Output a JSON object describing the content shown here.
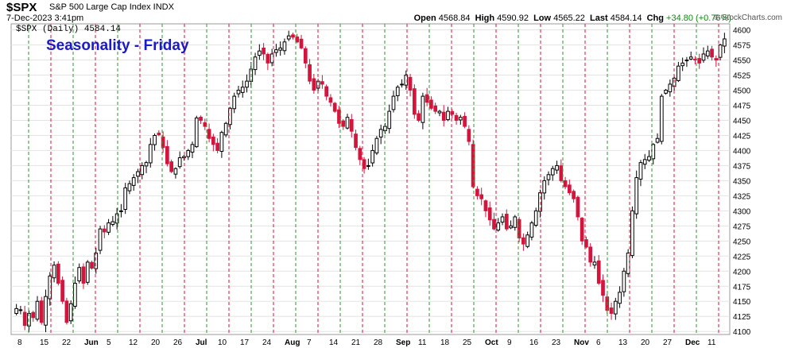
{
  "header": {
    "symbol": "$SPX",
    "description": "S&P 500 Large Cap Index INDX",
    "datetime": "7-Dec-2023 3:41pm",
    "open_label": "Open",
    "open": "4568.84",
    "high_label": "High",
    "high": "4590.92",
    "low_label": "Low",
    "low": "4565.22",
    "last_label": "Last",
    "last": "4584.14",
    "chg_label": "Chg",
    "chg": "+34.80 (+0.76%)",
    "brand": "© StockCharts.com"
  },
  "legend": "$SPX (Daily) 4584.14",
  "annotation": "Seasonality - Friday",
  "colors": {
    "up": "#000000",
    "down": "#d4143c",
    "friday_line": "#2a9a2a",
    "monday_line": "#d4143c"
  },
  "chart_data": {
    "type": "candlestick",
    "ylim": [
      4095,
      4610
    ],
    "y_ticks": [
      4100,
      4125,
      4150,
      4175,
      4200,
      4225,
      4250,
      4275,
      4300,
      4325,
      4350,
      4375,
      4400,
      4425,
      4450,
      4475,
      4500,
      4525,
      4550,
      4575,
      4600
    ],
    "x_labels": [
      "8",
      "15",
      "22",
      "Jun",
      "5",
      "12",
      "20",
      "26",
      "Jul",
      "10",
      "17",
      "24",
      "Aug",
      "7",
      "14",
      "21",
      "28",
      "Sep",
      "11",
      "18",
      "25",
      "Oct",
      "9",
      "16",
      "23",
      "Nov",
      "6",
      "13",
      "20",
      "27",
      "Dec",
      "11"
    ],
    "x_label_bold": [
      "Jun",
      "Jul",
      "Aug",
      "Sep",
      "Oct",
      "Nov",
      "Dec"
    ],
    "grid": true,
    "closes": [
      4138,
      4136,
      4110,
      4130,
      4123,
      4150,
      4115,
      4158,
      4192,
      4210,
      4180,
      4150,
      4115,
      4146,
      4180,
      4206,
      4180,
      4215,
      4205,
      4230,
      4270,
      4265,
      4280,
      4282,
      4295,
      4300,
      4338,
      4345,
      4355,
      4365,
      4375,
      4380,
      4410,
      4425,
      4426,
      4405,
      4378,
      4365,
      4370,
      4388,
      4390,
      4400,
      4410,
      4454,
      4450,
      4440,
      4420,
      4410,
      4400,
      4430,
      4445,
      4470,
      4490,
      4500,
      4505,
      4515,
      4535,
      4555,
      4565,
      4560,
      4545,
      4560,
      4567,
      4570,
      4580,
      4590,
      4588,
      4580,
      4570,
      4545,
      4515,
      4500,
      4515,
      4510,
      4490,
      4480,
      4465,
      4445,
      4440,
      4455,
      4432,
      4405,
      4385,
      4370,
      4375,
      4400,
      4420,
      4435,
      4440,
      4465,
      4490,
      4505,
      4510,
      4525,
      4500,
      4460,
      4450,
      4490,
      4480,
      4470,
      4465,
      4465,
      4450,
      4465,
      4460,
      4450,
      4455,
      4440,
      4415,
      4340,
      4325,
      4320,
      4300,
      4285,
      4270,
      4280,
      4290,
      4270,
      4275,
      4290,
      4255,
      4245,
      4260,
      4280,
      4300,
      4330,
      4350,
      4360,
      4370,
      4375,
      4350,
      4340,
      4330,
      4320,
      4290,
      4250,
      4240,
      4215,
      4215,
      4180,
      4160,
      4135,
      4130,
      4150,
      4165,
      4200,
      4230,
      4300,
      4355,
      4380,
      4385,
      4390,
      4410,
      4420,
      4490,
      4500,
      4510,
      4520,
      4540,
      4545,
      4550,
      4555,
      4550,
      4545,
      4560,
      4565,
      4555,
      4550,
      4575,
      4585
    ]
  }
}
